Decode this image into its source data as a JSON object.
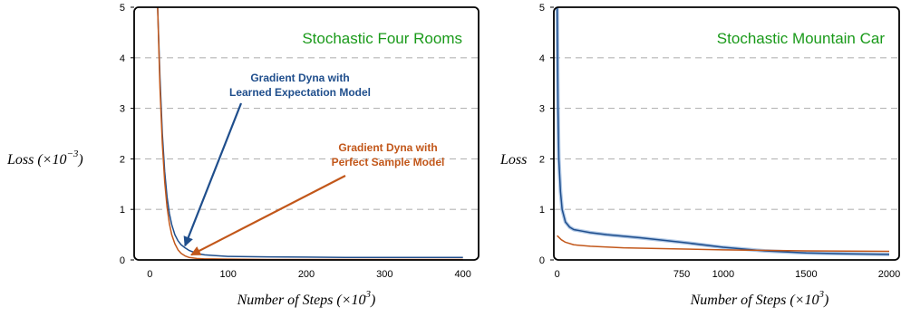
{
  "chart_data": [
    {
      "type": "line",
      "title": "Stochastic Four Rooms",
      "title_color": "#1a9a1a",
      "ylabel": "Loss (×10",
      "ylabel_exp": "−3",
      "ylabel_close": ")",
      "xlabel": "Number of Steps (×10",
      "xlabel_exp": "3",
      "xlabel_close": ")",
      "xlim": [
        -20,
        420
      ],
      "ylim": [
        0,
        5
      ],
      "xticks": [
        0,
        100,
        200,
        300,
        400
      ],
      "yticks": [
        0,
        1,
        2,
        3,
        4,
        5
      ],
      "grid": "horizontal dashed",
      "series": [
        {
          "name": "Gradient Dyna with Learned Expectation Model",
          "color": "#1f4e8c",
          "x": [
            10,
            13,
            16,
            19,
            22,
            25,
            28,
            32,
            36,
            40,
            45,
            50,
            60,
            70,
            80,
            100,
            150,
            200,
            250,
            300,
            350,
            400
          ],
          "y": [
            5.0,
            3.6,
            2.5,
            1.75,
            1.25,
            0.92,
            0.7,
            0.5,
            0.38,
            0.3,
            0.24,
            0.19,
            0.13,
            0.1,
            0.09,
            0.07,
            0.06,
            0.055,
            0.05,
            0.05,
            0.05,
            0.05
          ]
        },
        {
          "name": "Gradient Dyna with Perfect Sample Model",
          "color": "#c2571a",
          "x": [
            10,
            13,
            16,
            19,
            22,
            25,
            28,
            32,
            36,
            40,
            45,
            50,
            60,
            70,
            80,
            100,
            150,
            200,
            250,
            300,
            350,
            400
          ],
          "y": [
            5.0,
            3.4,
            2.3,
            1.55,
            1.05,
            0.72,
            0.5,
            0.32,
            0.2,
            0.13,
            0.08,
            0.05,
            0.03,
            0.02,
            0.02,
            0.015,
            0.01,
            0.01,
            0.01,
            0.01,
            0.01,
            0.01
          ]
        }
      ],
      "annotations": [
        {
          "lines": [
            "Gradient Dyna with",
            "Learned Expectation Model"
          ],
          "color": "#1f4e8c",
          "arrow_to": [
            45,
            0.28
          ]
        },
        {
          "lines": [
            "Gradient Dyna with",
            "Perfect Sample Model"
          ],
          "color": "#c2571a",
          "arrow_to": [
            53,
            0.1
          ]
        }
      ]
    },
    {
      "type": "line",
      "title": "Stochastic Mountain Car",
      "title_color": "#1a9a1a",
      "ylabel": "Loss",
      "xlabel": "Number of Steps (×10",
      "xlabel_exp": "3",
      "xlabel_close": ")",
      "xlim": [
        -20,
        2060
      ],
      "ylim": [
        0,
        5
      ],
      "xticks": [
        0,
        750,
        1000,
        1500,
        2000
      ],
      "yticks": [
        0,
        1,
        2,
        3,
        4,
        5
      ],
      "grid": "horizontal dashed",
      "series": [
        {
          "name": "Gradient Dyna with Learned Expectation Model",
          "color": "#1f4e8c",
          "x": [
            0,
            5,
            10,
            20,
            30,
            50,
            75,
            100,
            150,
            200,
            300,
            500,
            750,
            1000,
            1250,
            1500,
            1750,
            2000
          ],
          "y": [
            5.0,
            3.0,
            2.0,
            1.35,
            1.0,
            0.75,
            0.65,
            0.6,
            0.57,
            0.54,
            0.5,
            0.44,
            0.35,
            0.25,
            0.18,
            0.14,
            0.12,
            0.11
          ]
        },
        {
          "name": "Gradient Dyna with Perfect Sample Model",
          "color": "#c2571a",
          "x": [
            0,
            25,
            50,
            100,
            200,
            400,
            700,
            1000,
            1500,
            2000
          ],
          "y": [
            0.48,
            0.4,
            0.35,
            0.3,
            0.27,
            0.24,
            0.22,
            0.2,
            0.18,
            0.17
          ]
        }
      ]
    }
  ]
}
